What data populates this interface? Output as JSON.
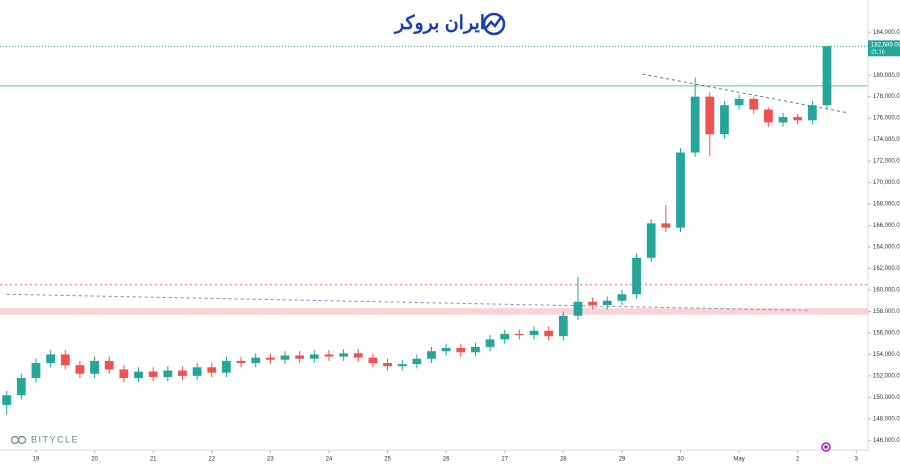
{
  "chart_data": {
    "type": "candlestick",
    "logo_text": "ایران بروکر",
    "watermark": "BITYCLE",
    "up_color": "#26a69a",
    "down_color": "#ef5350",
    "x": [
      -0.5,
      -0.25,
      0,
      0.25,
      0.5,
      0.75,
      1,
      1.25,
      1.5,
      1.75,
      2,
      2.25,
      2.5,
      2.75,
      3,
      3.25,
      3.5,
      3.75,
      4,
      4.25,
      4.5,
      4.75,
      5,
      5.25,
      5.5,
      5.75,
      6,
      6.25,
      6.5,
      6.75,
      7,
      7.25,
      7.5,
      7.75,
      8,
      8.25,
      8.5,
      8.75,
      9,
      9.25,
      9.5,
      9.75,
      10,
      10.25,
      10.5,
      10.75,
      11,
      11.25,
      11.5,
      11.75,
      12,
      12.25,
      12.5,
      12.75,
      13,
      13.25,
      13.5
    ],
    "open": [
      149300,
      150200,
      151800,
      153200,
      154000,
      153000,
      152200,
      153400,
      152600,
      151800,
      152400,
      151900,
      152500,
      152000,
      152800,
      152300,
      153400,
      153200,
      153700,
      153500,
      153900,
      153600,
      154000,
      153800,
      154100,
      153700,
      153200,
      152900,
      153100,
      153600,
      154300,
      154600,
      154200,
      154700,
      155400,
      155900,
      155800,
      156200,
      155700,
      157600,
      158900,
      158600,
      159000,
      159600,
      163000,
      166200,
      165800,
      172800,
      178000,
      174500,
      177200,
      177800,
      176800,
      175600,
      176100,
      175800,
      177200
    ],
    "high": [
      150600,
      152200,
      153600,
      154400,
      154400,
      153400,
      153800,
      153800,
      153000,
      152800,
      152800,
      152900,
      152900,
      153200,
      153200,
      153800,
      153800,
      154100,
      154100,
      154300,
      154300,
      154400,
      154400,
      154500,
      154500,
      154100,
      153600,
      153500,
      154000,
      154700,
      155000,
      155000,
      155100,
      155800,
      156300,
      156300,
      156600,
      156600,
      158000,
      161200,
      159300,
      159400,
      160000,
      163400,
      166600,
      167900,
      173200,
      179800,
      178400,
      177600,
      178200,
      178000,
      177000,
      176500,
      176400,
      177600,
      182689
    ],
    "low": [
      148400,
      149800,
      151400,
      152800,
      152600,
      151800,
      151800,
      152200,
      151400,
      151400,
      151500,
      151500,
      151600,
      151600,
      151900,
      151900,
      152800,
      152800,
      153100,
      153100,
      153200,
      153200,
      153400,
      153400,
      153300,
      152800,
      152500,
      152500,
      152700,
      153200,
      153900,
      153800,
      153800,
      154300,
      155000,
      155400,
      155400,
      155300,
      155300,
      157200,
      158200,
      158200,
      158600,
      159200,
      162600,
      165400,
      165400,
      172400,
      172500,
      174100,
      176800,
      176400,
      175200,
      175200,
      175400,
      175400,
      176800
    ],
    "close": [
      150200,
      151800,
      153200,
      154000,
      153000,
      152200,
      153400,
      152600,
      151800,
      152400,
      151900,
      152500,
      152000,
      152800,
      152300,
      153400,
      153200,
      153700,
      153500,
      153900,
      153600,
      154000,
      153800,
      154100,
      153700,
      153200,
      152900,
      153100,
      153600,
      154300,
      154600,
      154200,
      154700,
      155400,
      155900,
      155800,
      156200,
      155700,
      157600,
      158900,
      158600,
      159000,
      159600,
      163000,
      166200,
      165800,
      172800,
      178000,
      174500,
      177200,
      177800,
      176800,
      175600,
      176100,
      175800,
      177200,
      182689
    ],
    "xlim": [
      -0.614,
      14.2
    ],
    "ylim": [
      145100,
      187000
    ],
    "xticks": [
      {
        "value": 0,
        "label": "19"
      },
      {
        "value": 1,
        "label": "20"
      },
      {
        "value": 2,
        "label": "21"
      },
      {
        "value": 3,
        "label": "22"
      },
      {
        "value": 4,
        "label": "23"
      },
      {
        "value": 5,
        "label": "24"
      },
      {
        "value": 6,
        "label": "25"
      },
      {
        "value": 7,
        "label": "26"
      },
      {
        "value": 8,
        "label": "27"
      },
      {
        "value": 9,
        "label": "28"
      },
      {
        "value": 10,
        "label": "29"
      },
      {
        "value": 11,
        "label": "30"
      },
      {
        "value": 12,
        "label": "May"
      },
      {
        "value": 13,
        "label": "2"
      },
      {
        "value": 14,
        "label": "3"
      }
    ],
    "yticks": [
      {
        "value": 146000,
        "label": "146,000.00"
      },
      {
        "value": 148000,
        "label": "148,000.00"
      },
      {
        "value": 150000,
        "label": "150,000.00"
      },
      {
        "value": 152000,
        "label": "152,000.00"
      },
      {
        "value": 154000,
        "label": "154,000.00"
      },
      {
        "value": 156000,
        "label": "156,000.00"
      },
      {
        "value": 158000,
        "label": "158,000.00"
      },
      {
        "value": 160000,
        "label": "160,000.00"
      },
      {
        "value": 162000,
        "label": "162,000.00"
      },
      {
        "value": 164000,
        "label": "164,000.00"
      },
      {
        "value": 166000,
        "label": "166,000.00"
      },
      {
        "value": 168000,
        "label": "168,000.00"
      },
      {
        "value": 170000,
        "label": "170,000.00"
      },
      {
        "value": 172000,
        "label": "172,000.00"
      },
      {
        "value": 174000,
        "label": "174,000.00"
      },
      {
        "value": 176000,
        "label": "176,000.00"
      },
      {
        "value": 178000,
        "label": "178,000.00"
      },
      {
        "value": 180000,
        "label": "180,000.00"
      },
      {
        "value": 182000,
        "label": "182,000.00"
      },
      {
        "value": 184000,
        "label": "184,000.00"
      }
    ],
    "price_label": {
      "value": 182689,
      "label": "182,689.00"
    },
    "countdown": "21:16",
    "band": {
      "from": 157700,
      "to": 158300,
      "color": "#f8c8cc"
    },
    "hlines": [
      {
        "value": 179000,
        "color": "#6cbfa6",
        "dash": "none"
      },
      {
        "value": 160500,
        "color": "#ef7a7a",
        "dash": "2,3"
      }
    ],
    "trendlines": [
      {
        "x": [
          -0.5,
          13.2
        ],
        "y": [
          159600,
          158100
        ],
        "color": "#7c8fc8",
        "dash": "3,3"
      },
      {
        "x": [
          10.35,
          13.85
        ],
        "y": [
          180100,
          176500
        ],
        "color": "#777",
        "dash": "3,3"
      }
    ]
  }
}
